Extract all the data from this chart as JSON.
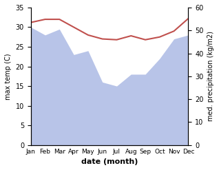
{
  "months": [
    "Jan",
    "Feb",
    "Mar",
    "Apr",
    "May",
    "Jun",
    "Jul",
    "Aug",
    "Sep",
    "Oct",
    "Nov",
    "Dec"
  ],
  "temperature": [
    31.2,
    32.0,
    32.0,
    30.0,
    28.0,
    27.0,
    26.8,
    27.8,
    26.8,
    27.5,
    29.0,
    32.2
  ],
  "precipitation_left_scale": [
    30.0,
    28.0,
    29.5,
    23.0,
    24.0,
    16.0,
    15.0,
    18.0,
    18.0,
    22.0,
    27.0,
    28.0
  ],
  "temp_color": "#c0504d",
  "precip_color": "#b8c4e8",
  "temp_ylim": [
    0,
    35
  ],
  "precip_ylim": [
    0,
    60
  ],
  "temp_yticks": [
    0,
    5,
    10,
    15,
    20,
    25,
    30,
    35
  ],
  "precip_yticks": [
    0,
    10,
    20,
    30,
    40,
    50,
    60
  ],
  "xlabel": "date (month)",
  "ylabel_left": "max temp (C)",
  "ylabel_right": "med. precipitation (kg/m2)"
}
